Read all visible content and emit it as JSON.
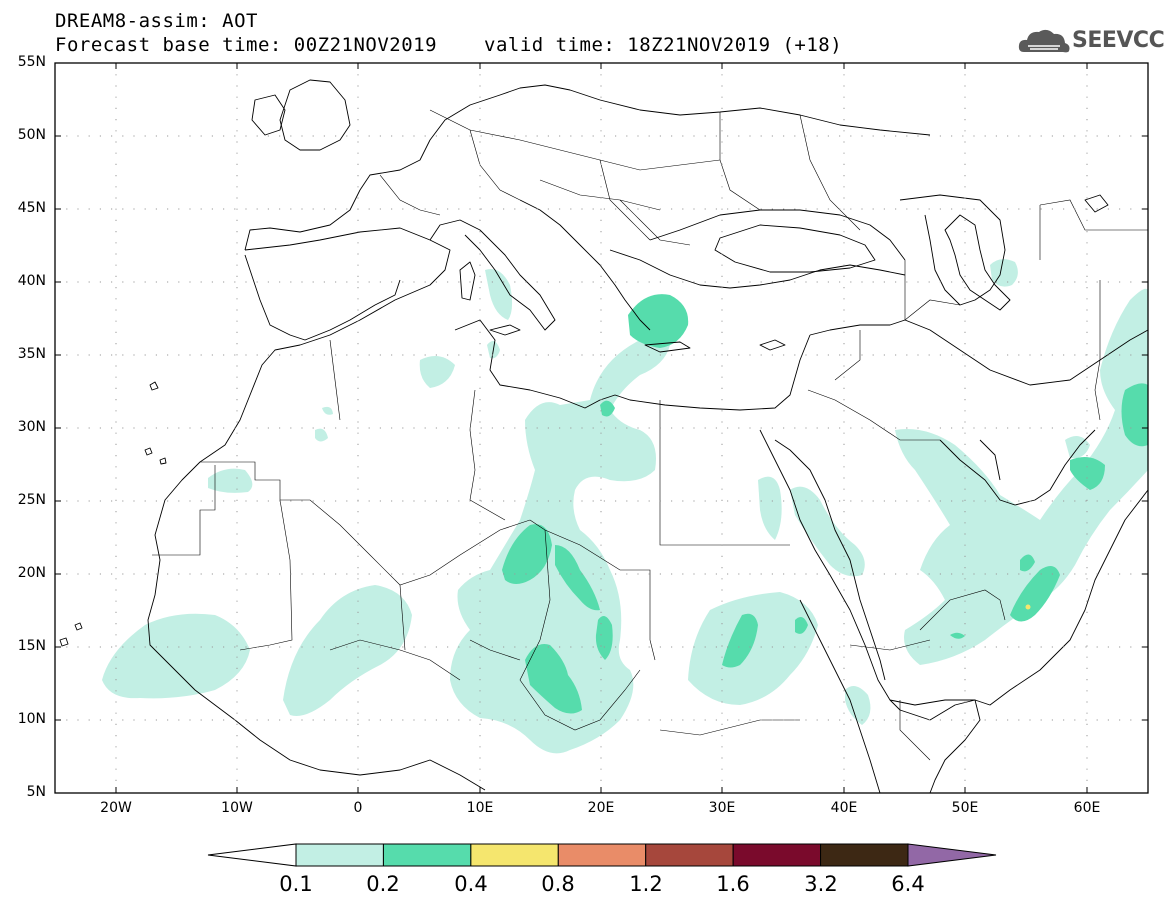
{
  "title": {
    "line1": "DREAM8-assim: AOT",
    "line2": "Forecast base time: 00Z21NOV2019",
    "valid": "valid time: 18Z21NOV2019 (+18)"
  },
  "logo": {
    "text": "SEEVCCC",
    "icon": "cloud-icon"
  },
  "map": {
    "projection": "lat-lon",
    "lon_range": [
      -25,
      65
    ],
    "lat_range": [
      5,
      55
    ],
    "grid": true,
    "lat_labels": [
      "55N",
      "50N",
      "45N",
      "40N",
      "35N",
      "30N",
      "25N",
      "20N",
      "15N",
      "10N",
      "5N"
    ],
    "lon_labels": [
      "20W",
      "10W",
      "0",
      "10E",
      "20E",
      "30E",
      "40E",
      "50E",
      "60E"
    ]
  },
  "colorbar": {
    "labels": [
      "0.1",
      "0.2",
      "0.4",
      "0.8",
      "1.2",
      "1.6",
      "3.2",
      "6.4"
    ],
    "colors": [
      "#ffffff",
      "#c2efe4",
      "#56dcac",
      "#f5e66e",
      "#e98c68",
      "#a6473c",
      "#7a0a2c",
      "#3d2814",
      "#9268a6"
    ]
  }
}
